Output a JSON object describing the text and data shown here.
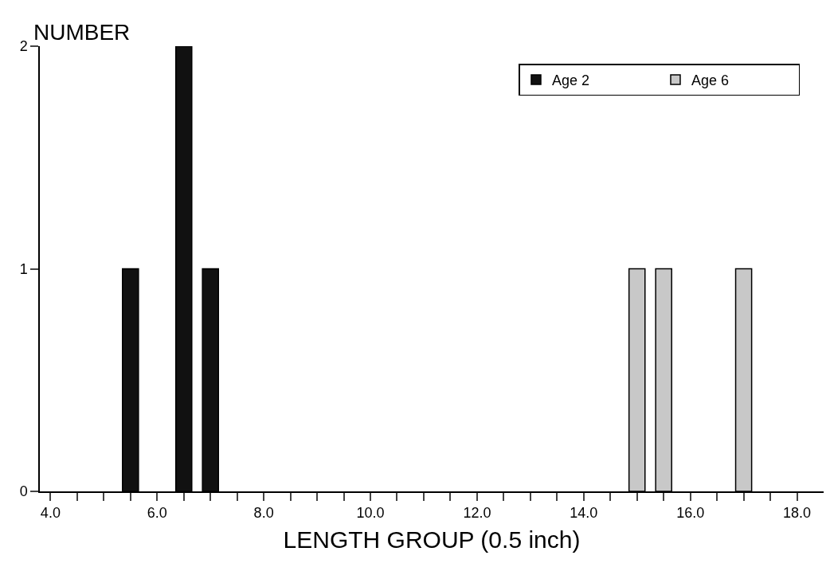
{
  "chart_data": {
    "type": "bar",
    "ylabel": "NUMBER",
    "xlabel": "LENGTH GROUP (0.5 inch)",
    "series": [
      {
        "name": "Age 2",
        "color": "#111111",
        "x": [
          5.5,
          6.5,
          7.0
        ],
        "values": [
          1,
          2,
          1
        ]
      },
      {
        "name": "Age 6",
        "color": "#c8c8c8",
        "x": [
          15.0,
          15.5,
          17.0
        ],
        "values": [
          1,
          1,
          1
        ]
      }
    ],
    "xlim": [
      3.8,
      18.5
    ],
    "xticks": [
      {
        "value": 4,
        "label": "4.0"
      },
      {
        "value": 4.5,
        "label": null
      },
      {
        "value": 5,
        "label": null
      },
      {
        "value": 5.5,
        "label": null
      },
      {
        "value": 6,
        "label": "6.0"
      },
      {
        "value": 6.5,
        "label": null
      },
      {
        "value": 7,
        "label": null
      },
      {
        "value": 7.5,
        "label": null
      },
      {
        "value": 8,
        "label": "8.0"
      },
      {
        "value": 8.5,
        "label": null
      },
      {
        "value": 9,
        "label": null
      },
      {
        "value": 9.5,
        "label": null
      },
      {
        "value": 10,
        "label": "10.0"
      },
      {
        "value": 10.5,
        "label": null
      },
      {
        "value": 11,
        "label": null
      },
      {
        "value": 11.5,
        "label": null
      },
      {
        "value": 12,
        "label": "12.0"
      },
      {
        "value": 12.5,
        "label": null
      },
      {
        "value": 13,
        "label": null
      },
      {
        "value": 13.5,
        "label": null
      },
      {
        "value": 14,
        "label": "14.0"
      },
      {
        "value": 14.5,
        "label": null
      },
      {
        "value": 15,
        "label": null
      },
      {
        "value": 15.5,
        "label": null
      },
      {
        "value": 16,
        "label": "16.0"
      },
      {
        "value": 16.5,
        "label": null
      },
      {
        "value": 17,
        "label": null
      },
      {
        "value": 17.5,
        "label": null
      },
      {
        "value": 18,
        "label": "18.0"
      }
    ],
    "ylim": [
      0,
      2
    ],
    "yticks": [
      0,
      1,
      2
    ],
    "grid": false,
    "legend": "top right"
  }
}
